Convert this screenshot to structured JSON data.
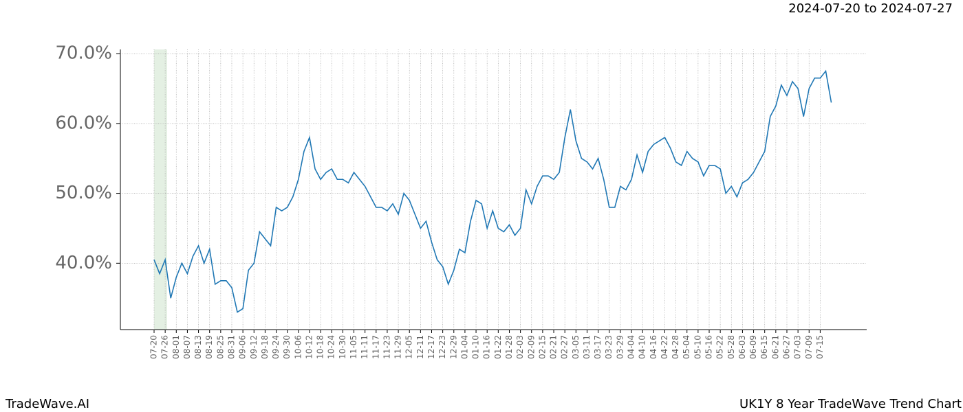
{
  "header": {
    "date_range": "2024-07-20 to 2024-07-27"
  },
  "footer": {
    "brand": "TradeWave.AI",
    "title": "UK1Y 8 Year TradeWave Trend Chart"
  },
  "chart_data": {
    "type": "line",
    "categories": [
      "07-20",
      null,
      "07-26",
      null,
      "08-01",
      null,
      "08-07",
      null,
      "08-13",
      null,
      "08-19",
      null,
      "08-25",
      null,
      "08-31",
      null,
      "09-06",
      null,
      "09-12",
      null,
      "09-18",
      null,
      "09-24",
      null,
      "09-30",
      null,
      "10-06",
      null,
      "10-12",
      null,
      "10-18",
      null,
      "10-24",
      null,
      "10-30",
      null,
      "11-05",
      null,
      "11-11",
      null,
      "11-17",
      null,
      "11-23",
      null,
      "11-29",
      null,
      "12-05",
      null,
      "12-11",
      null,
      "12-17",
      null,
      "12-23",
      null,
      "12-29",
      null,
      "01-04",
      null,
      "01-10",
      null,
      "01-16",
      null,
      "01-22",
      null,
      "01-28",
      null,
      "02-03",
      null,
      "02-09",
      null,
      "02-15",
      null,
      "02-21",
      null,
      "02-27",
      null,
      "03-05",
      null,
      "03-11",
      null,
      "03-17",
      null,
      "03-23",
      null,
      "03-29",
      null,
      "04-04",
      null,
      "04-10",
      null,
      "04-16",
      null,
      "04-22",
      null,
      "04-28",
      null,
      "05-04",
      null,
      "05-10",
      null,
      "05-16",
      null,
      "05-22",
      null,
      "05-28",
      null,
      "06-03",
      null,
      "06-09",
      null,
      "06-15",
      null,
      "06-21",
      null,
      "06-27",
      null,
      "07-03",
      null,
      "07-09",
      null,
      "07-15",
      null,
      null
    ],
    "series": [
      {
        "color": "#1f77b4",
        "values": [
          40.5,
          38.5,
          40.5,
          35,
          38,
          40,
          38.5,
          41,
          42.5,
          40,
          42,
          37,
          37.5,
          37.5,
          36.5,
          33,
          33.5,
          39,
          40,
          44.5,
          43.5,
          42.5,
          48,
          47.5,
          48,
          49.5,
          52,
          56,
          58,
          53.5,
          52,
          53,
          53.5,
          52,
          52,
          51.5,
          53,
          52,
          51,
          49.5,
          48,
          48,
          47.5,
          48.5,
          47,
          50,
          49,
          47,
          45,
          46,
          43,
          40.5,
          39.5,
          37,
          39,
          42,
          41.5,
          46,
          49,
          48.5,
          45,
          47.5,
          45,
          44.5,
          45.5,
          44,
          45,
          50.5,
          48.5,
          51,
          52.5,
          52.5,
          52,
          53,
          58,
          62,
          57.5,
          55,
          54.5,
          53.5,
          55,
          52,
          48,
          48,
          51,
          50.5,
          52,
          55.5,
          53,
          56,
          57,
          57.5,
          58,
          56.5,
          54.5,
          54,
          56,
          55,
          54.5,
          52.5,
          54,
          54,
          53.5,
          50,
          51,
          49.5,
          51.5,
          52,
          53,
          54.5,
          56,
          61,
          62.5,
          65.5,
          64,
          66,
          65,
          61,
          65,
          66.5,
          66.5,
          67.5,
          63
        ]
      }
    ],
    "ylim": [
      30.5,
      70.6
    ],
    "yticks": [
      {
        "value": 40,
        "label": "40.0%"
      },
      {
        "value": 50,
        "label": "50.0%"
      },
      {
        "value": 60,
        "label": "60.0%"
      },
      {
        "value": 70,
        "label": "70.0%"
      }
    ],
    "grid": true
  }
}
